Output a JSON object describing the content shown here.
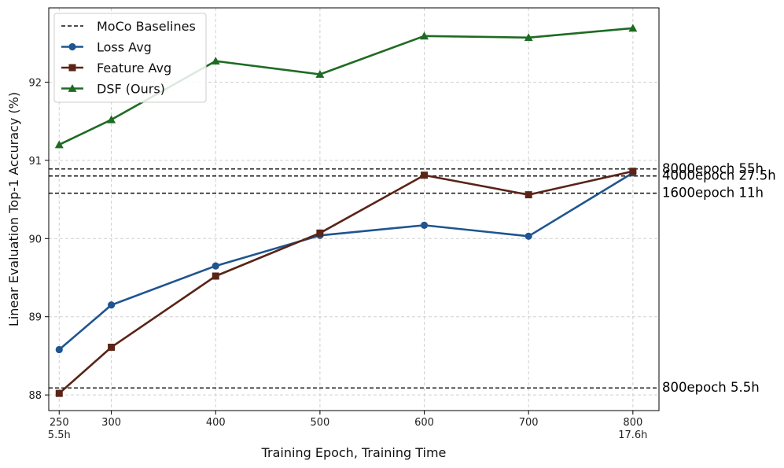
{
  "chart_data": {
    "type": "line",
    "title": "",
    "xlabel": "Training Epoch, Training Time",
    "ylabel": "Linear Evaluation Top-1 Accuracy (%)",
    "xlim": [
      240,
      825
    ],
    "ylim": [
      87.8,
      92.95
    ],
    "grid": true,
    "legend_position": "top-left",
    "x": [
      250,
      300,
      400,
      500,
      600,
      700,
      800
    ],
    "x_ticks": [
      {
        "value": 250,
        "label": "250",
        "sublabel": "5.5h"
      },
      {
        "value": 300,
        "label": "300",
        "sublabel": ""
      },
      {
        "value": 400,
        "label": "400",
        "sublabel": ""
      },
      {
        "value": 500,
        "label": "500",
        "sublabel": ""
      },
      {
        "value": 600,
        "label": "600",
        "sublabel": ""
      },
      {
        "value": 700,
        "label": "700",
        "sublabel": ""
      },
      {
        "value": 800,
        "label": "800",
        "sublabel": "17.6h"
      }
    ],
    "y_ticks": [
      {
        "value": 88,
        "label": "88"
      },
      {
        "value": 89,
        "label": "89"
      },
      {
        "value": 90,
        "label": "90"
      },
      {
        "value": 91,
        "label": "91"
      },
      {
        "value": 92,
        "label": "92"
      }
    ],
    "series": [
      {
        "name": "Loss Avg",
        "key": "loss-avg",
        "color": "#1f5590",
        "marker": "circle",
        "values": [
          88.58,
          89.15,
          89.65,
          90.04,
          90.17,
          90.03,
          90.84
        ]
      },
      {
        "name": "Feature Avg",
        "key": "feature-avg",
        "color": "#5a2417",
        "marker": "square",
        "values": [
          88.02,
          88.61,
          89.52,
          90.07,
          90.81,
          90.56,
          90.86
        ]
      },
      {
        "name": "DSF (Ours)",
        "key": "dsf",
        "color": "#1e6b23",
        "marker": "triangle",
        "values": [
          91.2,
          91.52,
          92.27,
          92.1,
          92.59,
          92.57,
          92.69
        ]
      }
    ],
    "baselines": {
      "name": "MoCo Baselines",
      "color": "#111111",
      "lines": [
        {
          "value": 90.89,
          "label": "8000epoch 55h"
        },
        {
          "value": 90.8,
          "label": "4000epoch 27.5h"
        },
        {
          "value": 90.58,
          "label": "1600epoch 11h"
        },
        {
          "value": 88.09,
          "label": "800epoch 5.5h"
        }
      ]
    }
  }
}
